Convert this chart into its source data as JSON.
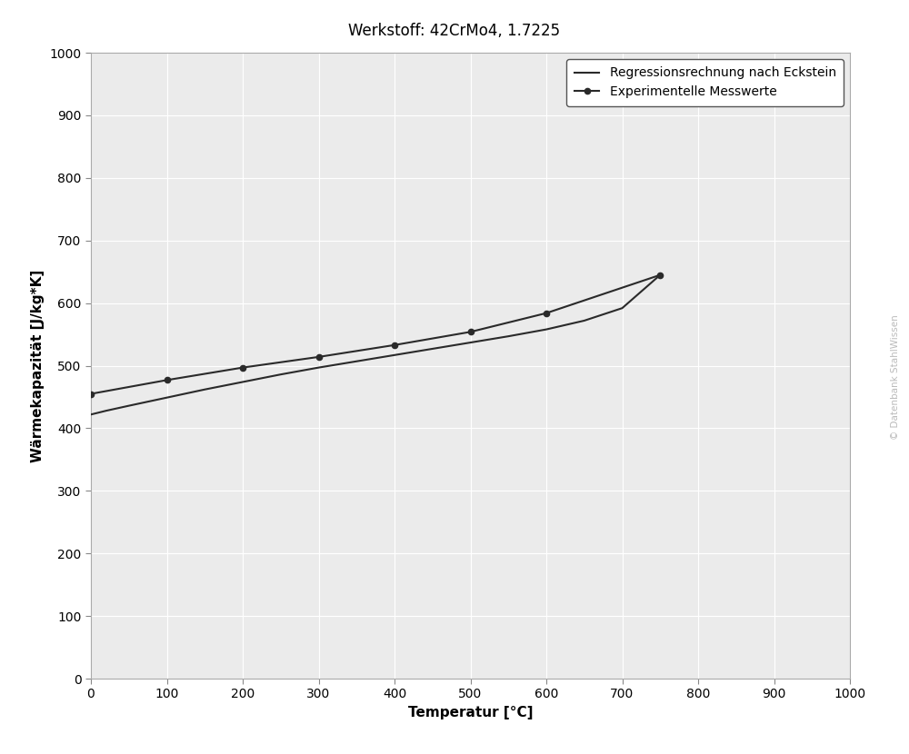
{
  "title": "Werkstoff: 42CrMo4, 1.7225",
  "xlabel": "Temperatur [°C]",
  "ylabel": "Wärmekapazität [J/kg*K]",
  "watermark": "© Datenbank StahlWissen",
  "xlim": [
    0,
    1000
  ],
  "ylim": [
    0,
    1000
  ],
  "xticks": [
    0,
    100,
    200,
    300,
    400,
    500,
    600,
    700,
    800,
    900,
    1000
  ],
  "yticks": [
    0,
    100,
    200,
    300,
    400,
    500,
    600,
    700,
    800,
    900,
    1000
  ],
  "regression_x": [
    0,
    20,
    50,
    100,
    150,
    200,
    250,
    300,
    350,
    400,
    450,
    500,
    550,
    600,
    650,
    700,
    750
  ],
  "regression_y": [
    422,
    428,
    436,
    449,
    462,
    474,
    486,
    497,
    507,
    517,
    527,
    537,
    547,
    558,
    572,
    592,
    645
  ],
  "experimental_x": [
    0,
    100,
    200,
    300,
    400,
    500,
    600,
    750
  ],
  "experimental_y": [
    455,
    477,
    497,
    514,
    533,
    554,
    584,
    645
  ],
  "line_color": "#2a2a2a",
  "marker_color": "#2a2a2a",
  "legend_regression": "Regressionsrechnung nach Eckstein",
  "legend_experimental": "Experimentelle Messwerte",
  "figure_facecolor": "#ffffff",
  "axes_facecolor": "#ebebeb",
  "grid_color": "#ffffff",
  "spine_color": "#aaaaaa",
  "title_fontsize": 12,
  "axis_label_fontsize": 11,
  "tick_fontsize": 10,
  "legend_fontsize": 10,
  "watermark_color": "#bbbbbb"
}
